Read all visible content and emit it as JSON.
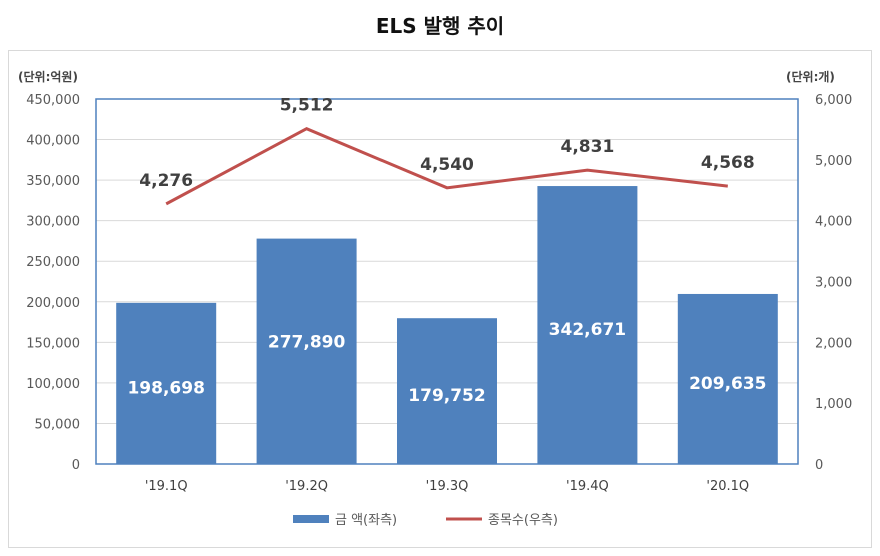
{
  "chart_data": {
    "type": "bar+line",
    "title": "ELS 발행 추이",
    "left_unit": "(단위:억원)",
    "right_unit": "(단위:개)",
    "categories": [
      "'19.1Q",
      "'19.2Q",
      "'19.3Q",
      "'19.4Q",
      "'20.1Q"
    ],
    "series": [
      {
        "name": "금 액(좌측)",
        "type": "bar",
        "axis": "left",
        "color": "#4f81bd",
        "values": [
          198698,
          277890,
          179752,
          342671,
          209635
        ],
        "labels": [
          "198,698",
          "277,890",
          "179,752",
          "342,671",
          "209,635"
        ]
      },
      {
        "name": "종목수(우측)",
        "type": "line",
        "axis": "right",
        "color": "#c0504d",
        "values": [
          4276,
          5512,
          4540,
          4831,
          4568
        ],
        "labels": [
          "4,276",
          "5,512",
          "4,540",
          "4,831",
          "4,568"
        ]
      }
    ],
    "left_axis": {
      "ylim": [
        0,
        450000
      ],
      "ticks": [
        "0",
        "50,000",
        "100,000",
        "150,000",
        "200,000",
        "250,000",
        "300,000",
        "350,000",
        "400,000",
        "450,000"
      ]
    },
    "right_axis": {
      "ylim": [
        0,
        6000
      ],
      "ticks": [
        "0",
        "1,000",
        "2,000",
        "3,000",
        "4,000",
        "5,000",
        "6,000"
      ]
    },
    "grid": true,
    "legend": "bottom"
  }
}
